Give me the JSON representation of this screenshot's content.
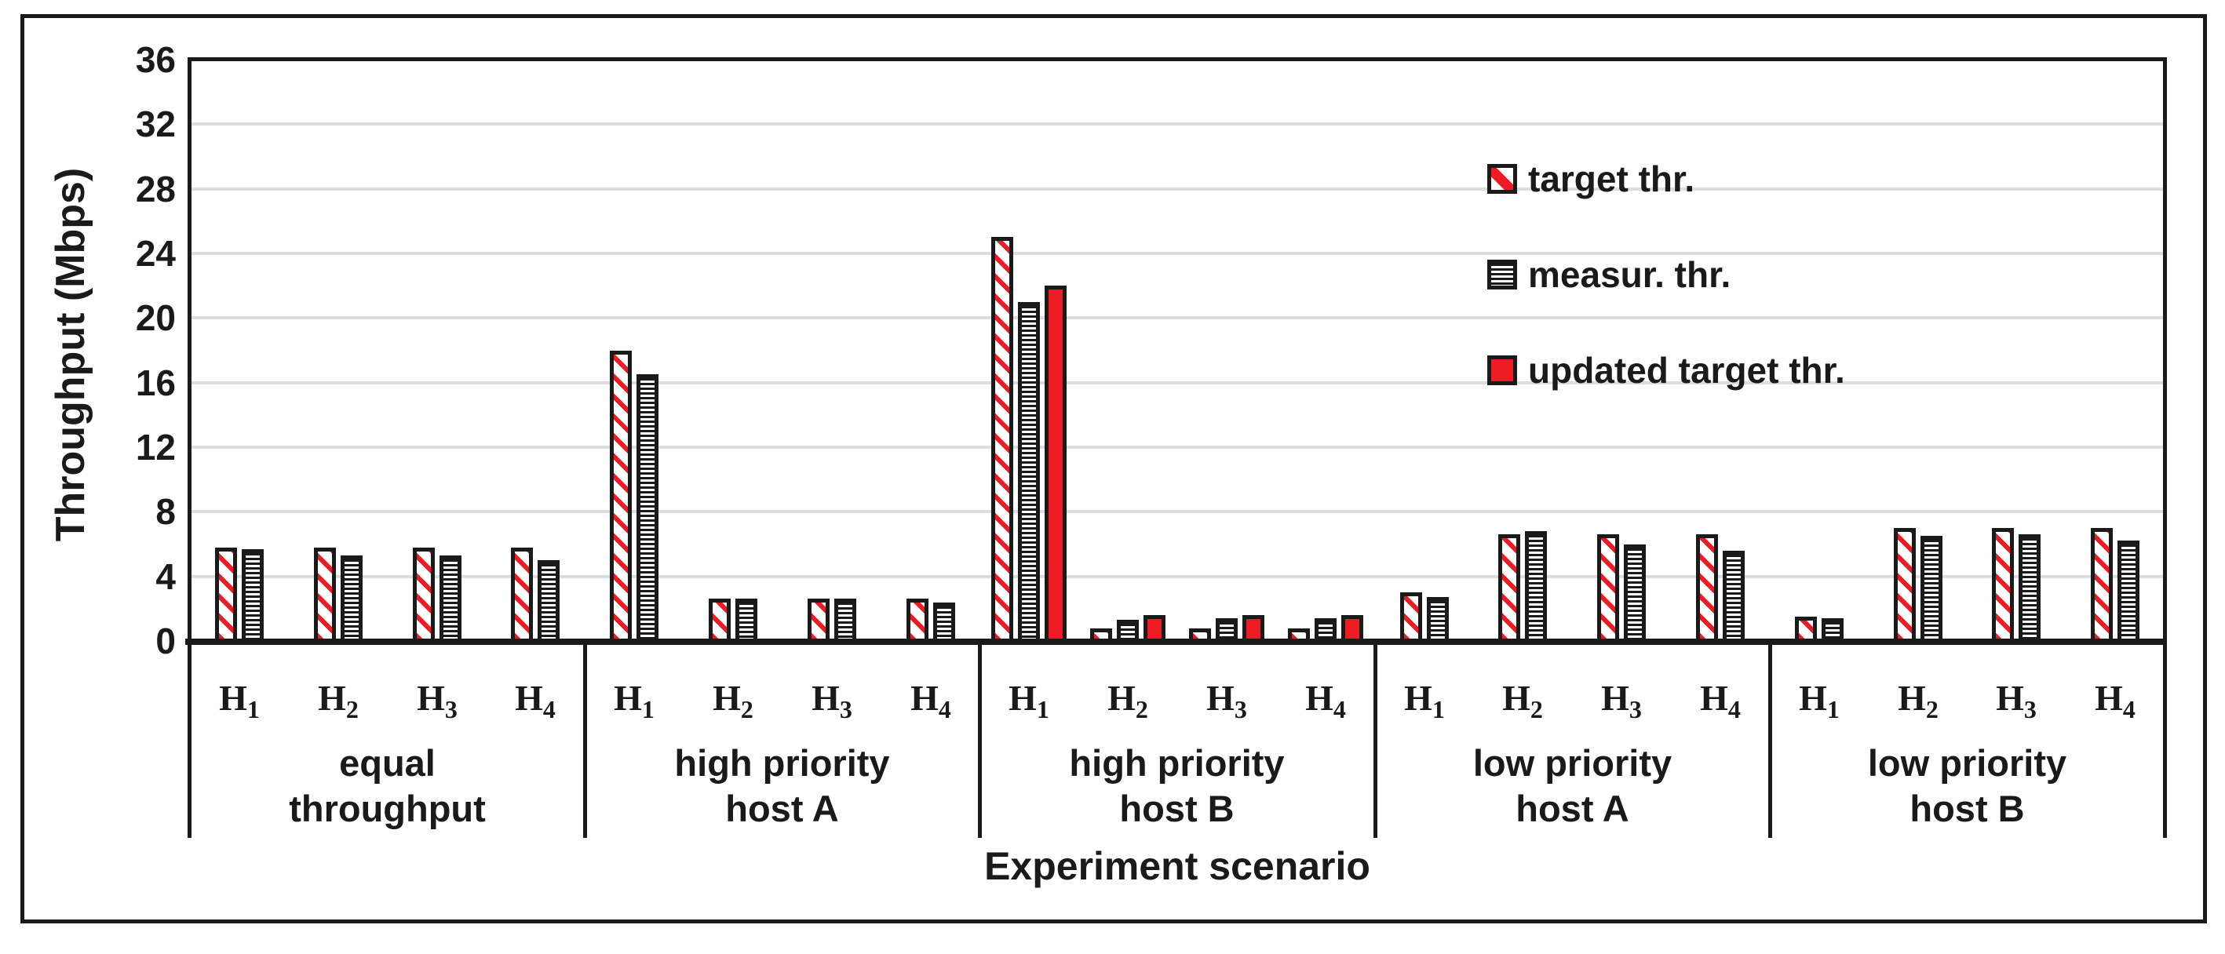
{
  "colors": {
    "series_red": "#ED1C24",
    "line_black": "#1a1a1a",
    "gridline_gray": "#DCDDDE"
  },
  "legend": [
    {
      "label": "target thr.",
      "series": "target"
    },
    {
      "label": "measur. thr.",
      "series": "measured"
    },
    {
      "label": "updated target thr.",
      "series": "updated"
    }
  ],
  "chart_data": {
    "type": "bar",
    "title": "",
    "ylabel": "Throughput (Mbps)",
    "xlabel": "Experiment scenario",
    "ylim": [
      0,
      36
    ],
    "yticks": [
      0,
      4,
      8,
      12,
      16,
      20,
      24,
      28,
      32,
      36
    ],
    "grid": true,
    "legend_position": "upper-right-inside",
    "hosts": [
      {
        "base": "H",
        "sub": "1"
      },
      {
        "base": "H",
        "sub": "2"
      },
      {
        "base": "H",
        "sub": "3"
      },
      {
        "base": "H",
        "sub": "4"
      }
    ],
    "series_order": [
      "target",
      "measured",
      "updated"
    ],
    "groups": [
      {
        "label_lines": [
          "equal",
          "throughput"
        ],
        "values": {
          "target": [
            5.8,
            5.8,
            5.8,
            5.8
          ],
          "measured": [
            5.7,
            5.3,
            5.3,
            5.0
          ]
        }
      },
      {
        "label_lines": [
          "high priority",
          "host A"
        ],
        "values": {
          "target": [
            18.0,
            2.6,
            2.6,
            2.6
          ],
          "measured": [
            16.5,
            2.6,
            2.6,
            2.4
          ]
        }
      },
      {
        "label_lines": [
          "high priority",
          "host B"
        ],
        "values": {
          "target": [
            25.0,
            0.8,
            0.8,
            0.8
          ],
          "measured": [
            21.0,
            1.3,
            1.4,
            1.4
          ],
          "updated": [
            22.0,
            1.6,
            1.6,
            1.6
          ]
        }
      },
      {
        "label_lines": [
          "low priority",
          "host A"
        ],
        "values": {
          "target": [
            3.0,
            6.6,
            6.6,
            6.6
          ],
          "measured": [
            2.7,
            6.8,
            6.0,
            5.6
          ]
        }
      },
      {
        "label_lines": [
          "low priority",
          "host B"
        ],
        "values": {
          "target": [
            1.5,
            7.0,
            7.0,
            7.0
          ],
          "measured": [
            1.4,
            6.5,
            6.6,
            6.2
          ]
        }
      }
    ]
  }
}
